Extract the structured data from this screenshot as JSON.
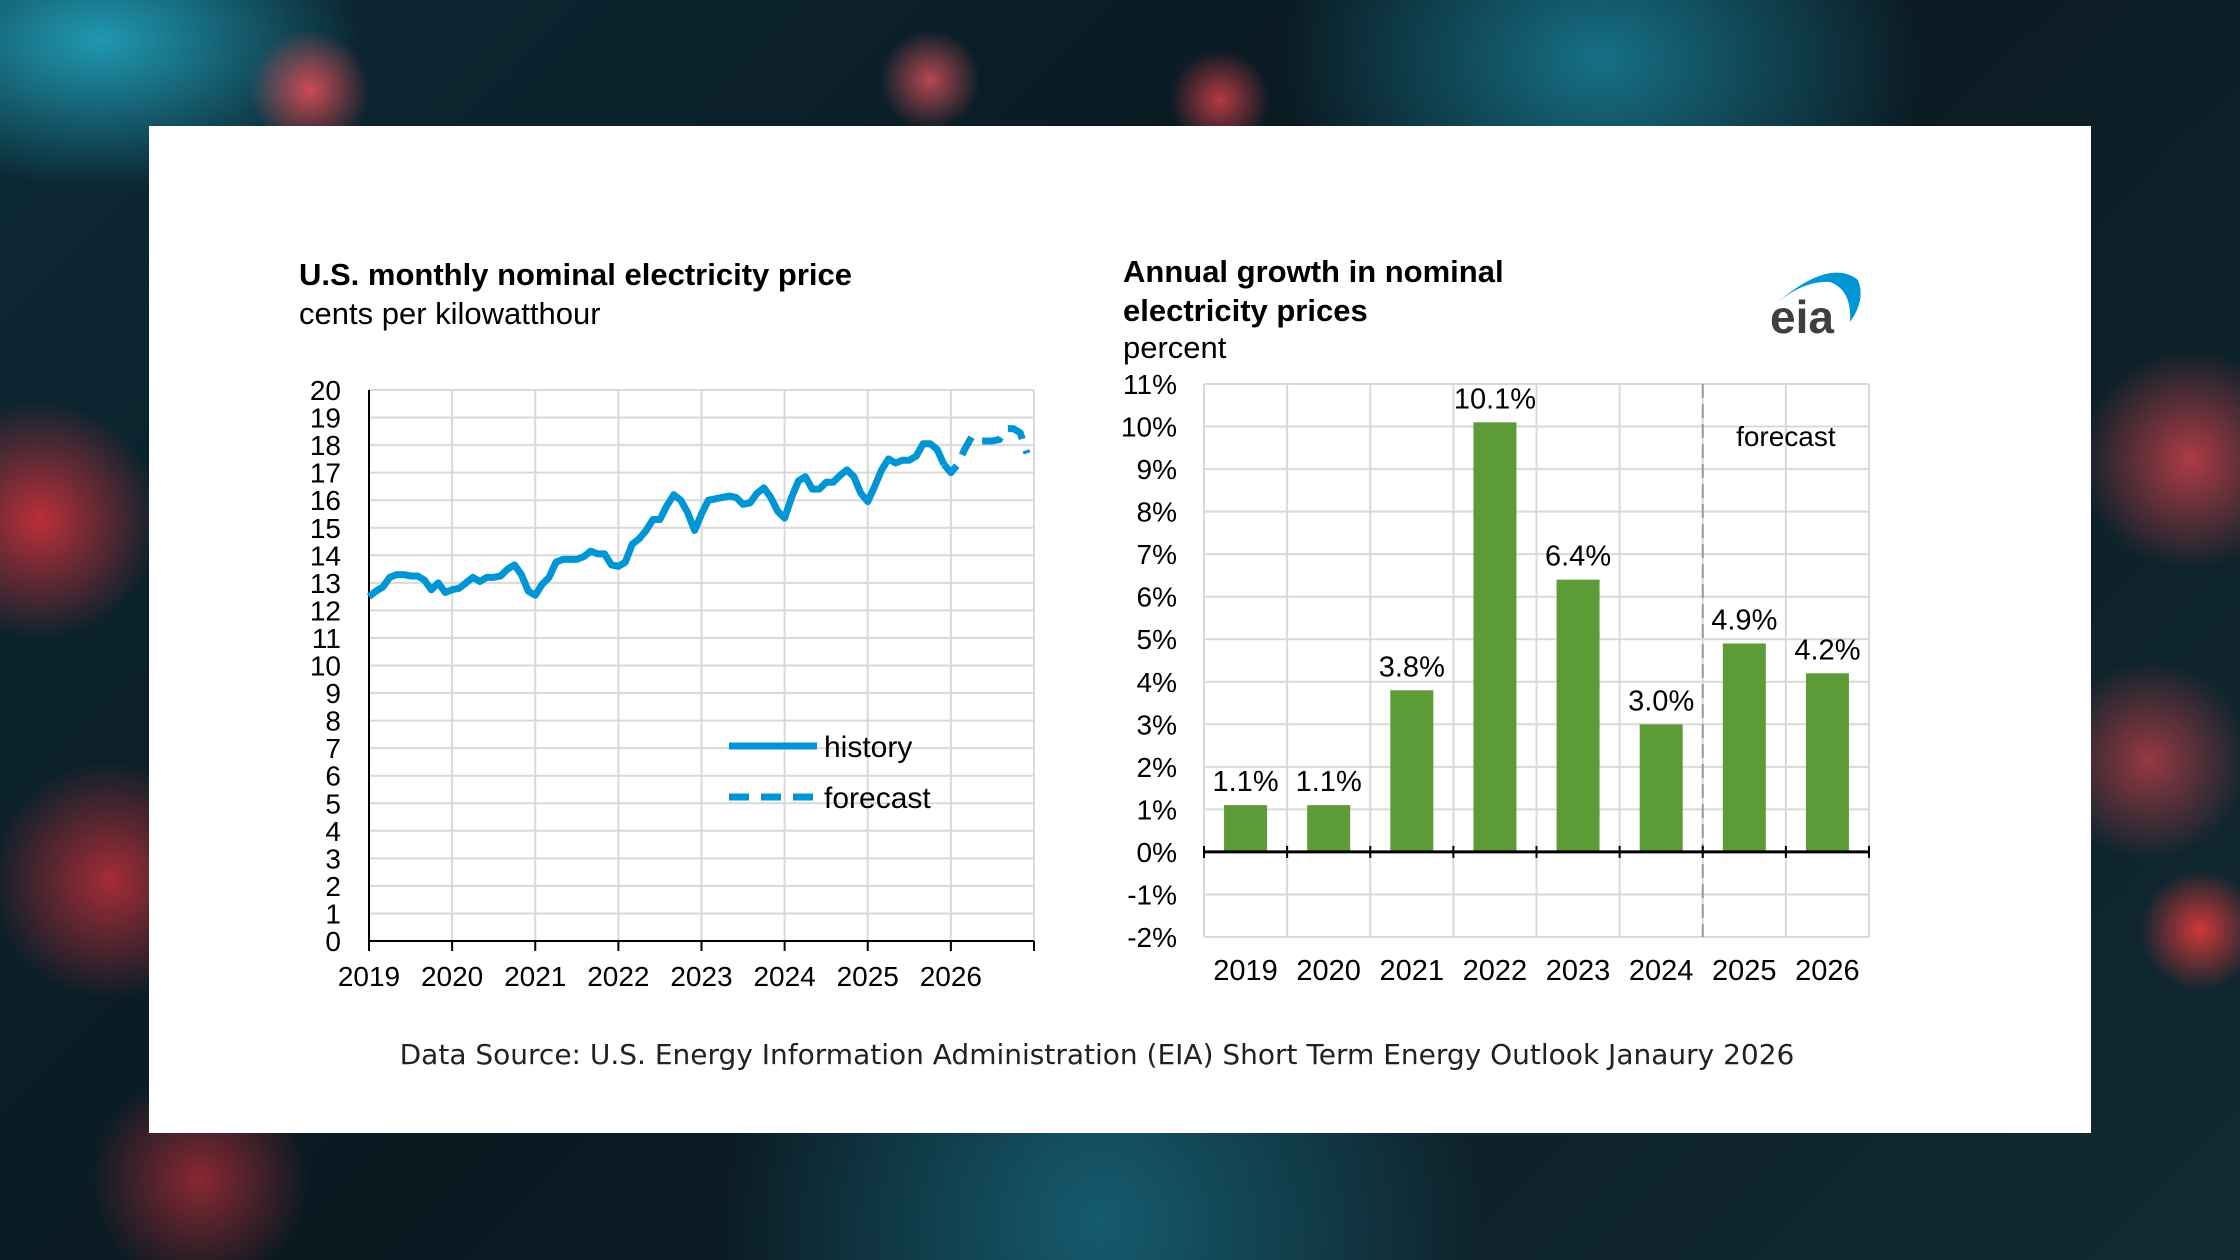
{
  "source": "Data Source: U.S. Energy Information Administration (EIA)  Short Term Energy Outlook Janaury 2026",
  "logo_text": "eia",
  "chart_data": [
    {
      "type": "line",
      "title": "U.S. monthly nominal electricity price",
      "subtitle": "cents per kilowatthour",
      "ylim": [
        0,
        20
      ],
      "yticks": [
        "0",
        "1",
        "2",
        "3",
        "4",
        "5",
        "6",
        "7",
        "8",
        "9",
        "10",
        "11",
        "12",
        "13",
        "14",
        "15",
        "16",
        "17",
        "18",
        "19",
        "20"
      ],
      "xticks": [
        "2019",
        "2020",
        "2021",
        "2022",
        "2023",
        "2024",
        "2025",
        "2026"
      ],
      "grid": true,
      "legend_position": "bottom-right",
      "color": "#0096d6",
      "series": [
        {
          "name": "history",
          "style": "solid",
          "start": "2019-01",
          "values": [
            12.5,
            12.7,
            12.85,
            13.2,
            13.3,
            13.3,
            13.25,
            13.25,
            13.1,
            12.75,
            13.0,
            12.65,
            12.75,
            12.8,
            13.0,
            13.2,
            13.05,
            13.2,
            13.2,
            13.25,
            13.5,
            13.65,
            13.3,
            12.7,
            12.55,
            12.95,
            13.2,
            13.75,
            13.85,
            13.85,
            13.85,
            13.95,
            14.15,
            14.05,
            14.05,
            13.65,
            13.6,
            13.75,
            14.4,
            14.6,
            14.9,
            15.3,
            15.3,
            15.8,
            16.2,
            16.0,
            15.55,
            14.9,
            15.5,
            16.0,
            16.05,
            16.1,
            16.15,
            16.1,
            15.85,
            15.9,
            16.25,
            16.45,
            16.1,
            15.6,
            15.35,
            16.1,
            16.7,
            16.85,
            16.4,
            16.4,
            16.65,
            16.65,
            16.9,
            17.1,
            16.85,
            16.25,
            15.95,
            16.5,
            17.1,
            17.5,
            17.35,
            17.45,
            17.45,
            17.6,
            18.05,
            18.05,
            17.85,
            17.3
          ]
        },
        {
          "name": "forecast",
          "style": "dashed",
          "start": "2026-01",
          "values": [
            17.0,
            17.3,
            17.85,
            18.3,
            18.15,
            18.15,
            18.15,
            18.2,
            18.6,
            18.6,
            18.45,
            17.7
          ]
        }
      ]
    },
    {
      "type": "bar",
      "title": "Annual growth in nominal electricity prices",
      "title_lines": [
        "Annual growth in nominal",
        "electricity prices"
      ],
      "subtitle": "percent",
      "categories": [
        "2019",
        "2020",
        "2021",
        "2022",
        "2023",
        "2024",
        "2025",
        "2026"
      ],
      "values": [
        1.1,
        1.1,
        3.8,
        10.1,
        6.4,
        3.0,
        4.9,
        4.2
      ],
      "data_labels": [
        "1.1%",
        "1.1%",
        "3.8%",
        "10.1%",
        "6.4%",
        "3.0%",
        "4.9%",
        "4.2%"
      ],
      "ylim": [
        -2,
        11
      ],
      "yticks": [
        "-2%",
        "-1%",
        "0%",
        "1%",
        "2%",
        "3%",
        "4%",
        "5%",
        "6%",
        "7%",
        "8%",
        "9%",
        "10%",
        "11%"
      ],
      "grid": true,
      "color": "#5c9b35",
      "annotation": "forecast",
      "forecast_from": "2025"
    }
  ]
}
